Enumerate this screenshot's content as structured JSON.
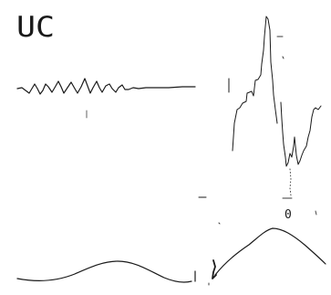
{
  "title_label": "UC",
  "marker_label": "0",
  "colors": {
    "ink": "#1a1a1a",
    "background": "#ffffff"
  }
}
